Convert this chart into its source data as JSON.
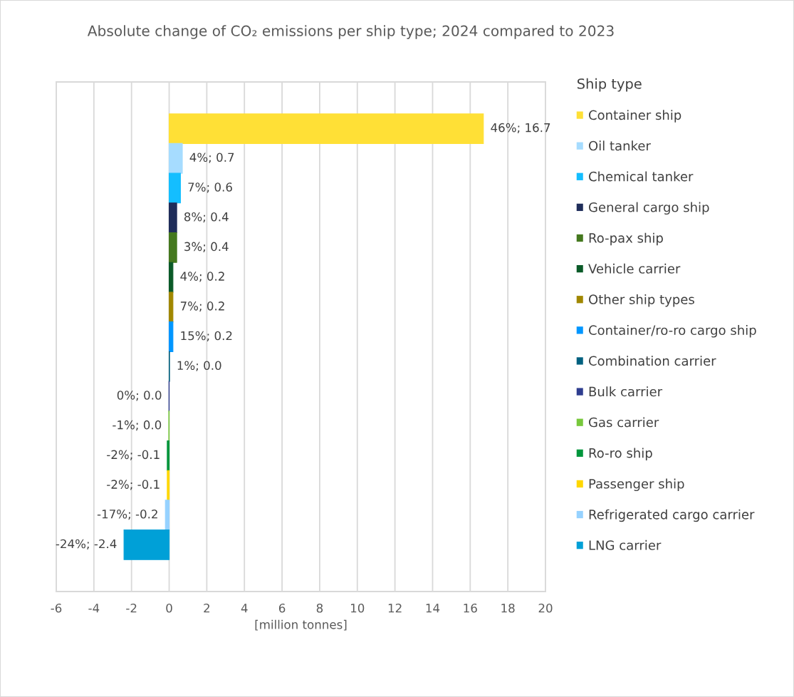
{
  "chart_data": {
    "type": "bar",
    "orientation": "horizontal",
    "title": "Absolute change of CO₂ emissions per ship type; 2024 compared to 2023",
    "xlabel": "[million tonnes]",
    "legend_title": "Ship type",
    "categories": [
      null
    ],
    "series": [
      {
        "name": "Container ship",
        "color": "#ffe036",
        "values": [
          16.7
        ],
        "value_labels": [
          "46%; 16.7"
        ]
      },
      {
        "name": "Oil tanker",
        "color": "#a6dcff",
        "values": [
          0.7
        ],
        "value_labels": [
          "4%; 0.7"
        ]
      },
      {
        "name": "Chemical tanker",
        "color": "#14beff",
        "values": [
          0.6
        ],
        "value_labels": [
          "7%; 0.6"
        ]
      },
      {
        "name": "General cargo ship",
        "color": "#1f2d5a",
        "values": [
          0.4
        ],
        "value_labels": [
          "8%; 0.4"
        ]
      },
      {
        "name": "Ro-pax ship",
        "color": "#44781e",
        "values": [
          0.4
        ],
        "value_labels": [
          "3%; 0.4"
        ]
      },
      {
        "name": "Vehicle carrier",
        "color": "#0a5a28",
        "values": [
          0.2
        ],
        "value_labels": [
          "4%; 0.2"
        ]
      },
      {
        "name": "Other ship types",
        "color": "#a08700",
        "values": [
          0.2
        ],
        "value_labels": [
          "7%; 0.2"
        ]
      },
      {
        "name": "Container/ro-ro cargo ship",
        "color": "#0096ff",
        "values": [
          0.2
        ],
        "value_labels": [
          "15%; 0.2"
        ]
      },
      {
        "name": "Combination carrier",
        "color": "#00607f",
        "values": [
          0.02
        ],
        "value_labels": [
          "1%; 0.0"
        ]
      },
      {
        "name": "Bulk carrier",
        "color": "#2e3d8f",
        "values": [
          -0.01
        ],
        "value_labels": [
          "0%; 0.0"
        ]
      },
      {
        "name": "Gas carrier",
        "color": "#78c83c",
        "values": [
          -0.02
        ],
        "value_labels": [
          "-1%; 0.0"
        ]
      },
      {
        "name": "Ro-ro ship",
        "color": "#00963c",
        "values": [
          -0.1
        ],
        "value_labels": [
          "-2%; -0.1"
        ]
      },
      {
        "name": "Passenger ship",
        "color": "#ffd700",
        "values": [
          -0.1
        ],
        "value_labels": [
          "-2%; -0.1"
        ]
      },
      {
        "name": "Refrigerated cargo carrier",
        "color": "#96d2ff",
        "values": [
          -0.2
        ],
        "value_labels": [
          "-17%; -0.2"
        ]
      },
      {
        "name": "LNG carrier",
        "color": "#00a0d7",
        "values": [
          -2.4
        ],
        "value_labels": [
          "-24%; -2.4"
        ]
      }
    ],
    "xlim": [
      -6,
      20
    ],
    "xticks": [
      -6,
      -4,
      -2,
      0,
      2,
      4,
      6,
      8,
      10,
      12,
      14,
      16,
      18,
      20
    ],
    "grid": "x",
    "legend": "right",
    "tick_labels": "x"
  }
}
